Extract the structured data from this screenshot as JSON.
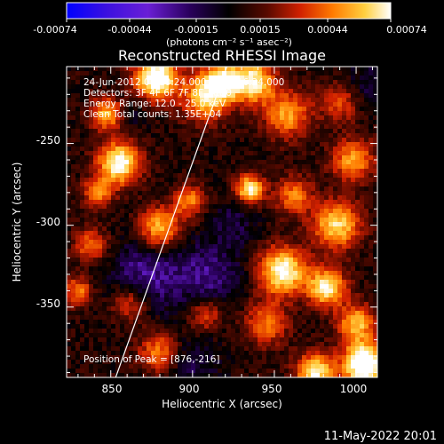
{
  "colorbar": {
    "tick_labels": [
      "-0.00074",
      "-0.00044",
      "-0.00015",
      "0.00015",
      "0.00044",
      "0.00074"
    ],
    "unit_label": "(photons cm⁻² s⁻¹ asec⁻²)",
    "range": [
      -0.00074,
      0.00074
    ]
  },
  "title": "Reconstructed RHESSI Image",
  "info_lines": [
    "24-Jun-2012 01:10:24.000 to 01:16:24.000",
    "Detectors: 3F 4F 6F 7F 8F, Att 0",
    "Energy Range: 12.0 - 25.0 keV",
    "Clean    Total counts: 1.35E+04"
  ],
  "peak_label": "Position of Peak = [876,-216]",
  "x_axis": {
    "label": "Heliocentric X (arcsec)",
    "ticks": [
      850,
      900,
      950,
      1000
    ],
    "range": [
      823,
      1013
    ]
  },
  "y_axis": {
    "label": "Heliocentric Y (arcsec)",
    "ticks": [
      -250,
      -300,
      -350
    ],
    "range": [
      -393,
      -203
    ]
  },
  "limb_line": {
    "start": [
      853,
      -393
    ],
    "end": [
      921,
      -203
    ]
  },
  "timestamp": "11-May-2022 20:01",
  "colors": {
    "background": "#000000",
    "line": "#ffffff"
  },
  "colormap_stops": [
    "#0000ff",
    "#6a1fd6",
    "#2a005c",
    "#000000",
    "#5a0a00",
    "#d02000",
    "#ff7a00",
    "#ffd040",
    "#ffffff"
  ]
}
